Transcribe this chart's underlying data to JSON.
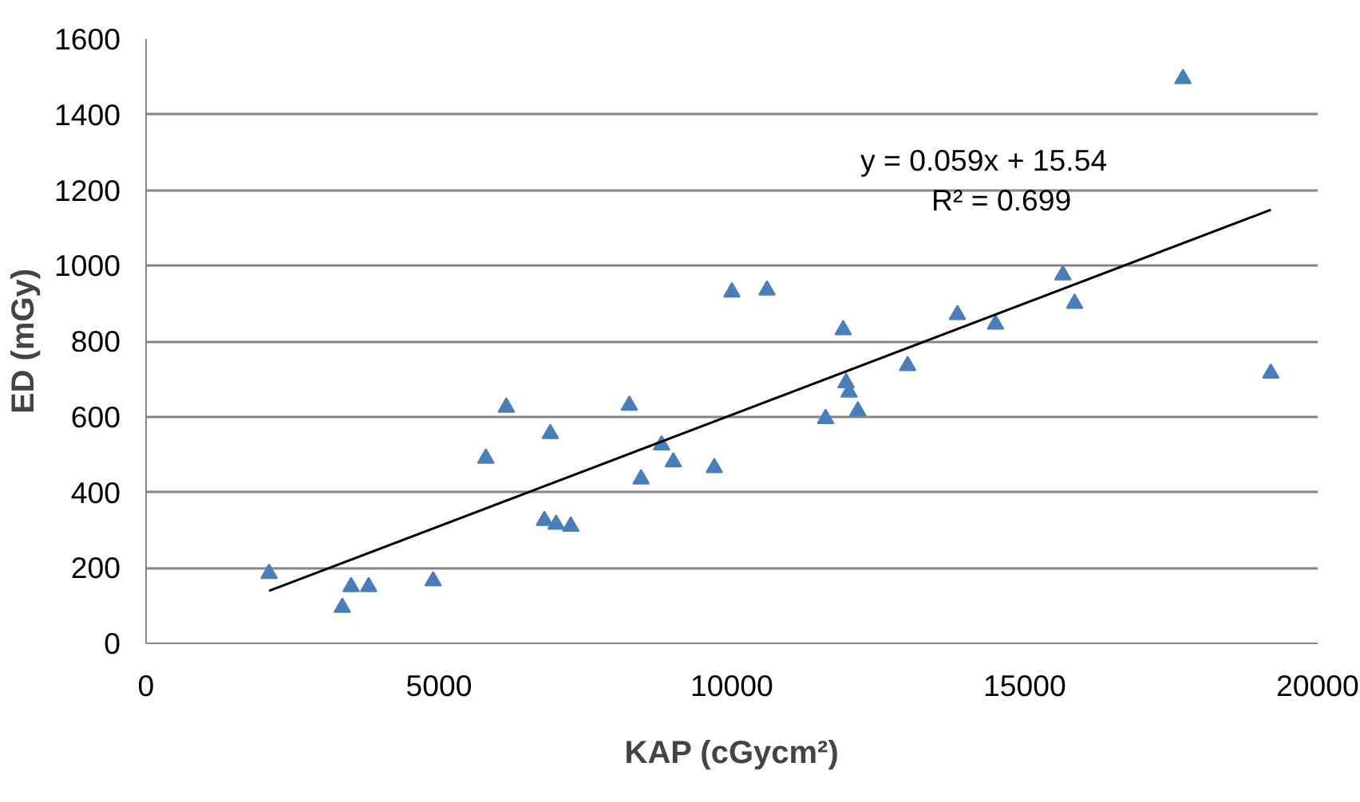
{
  "chart_data": {
    "type": "scatter",
    "xlabel": "KAP (cGycm²)",
    "ylabel": "ED (mGy)",
    "xlim": [
      0,
      20000
    ],
    "ylim": [
      0,
      1600
    ],
    "xticks": [
      0,
      5000,
      10000,
      15000,
      20000
    ],
    "yticks": [
      0,
      200,
      400,
      600,
      800,
      1000,
      1200,
      1400,
      1600
    ],
    "grid": "y",
    "annotations": [
      "y = 0.059x + 15.54",
      "R² = 0.699"
    ],
    "series": [
      {
        "marker": "triangle",
        "color": "#4a7ebb",
        "x": [
          2100,
          3350,
          3500,
          3800,
          4900,
          5800,
          6150,
          6800,
          6900,
          7000,
          7250,
          8250,
          8450,
          8800,
          9000,
          9700,
          10000,
          10600,
          11600,
          11900,
          11950,
          12000,
          12150,
          13000,
          13850,
          14500,
          15650,
          15850,
          17700,
          19200
        ],
        "values": [
          185,
          95,
          150,
          150,
          165,
          490,
          625,
          325,
          555,
          315,
          310,
          630,
          435,
          525,
          480,
          465,
          930,
          935,
          595,
          830,
          690,
          665,
          615,
          735,
          870,
          845,
          975,
          900,
          1495,
          715
        ]
      },
      {
        "type": "line",
        "color": "#000000",
        "x": [
          2100,
          19200
        ],
        "values": [
          139,
          1148
        ]
      }
    ]
  }
}
